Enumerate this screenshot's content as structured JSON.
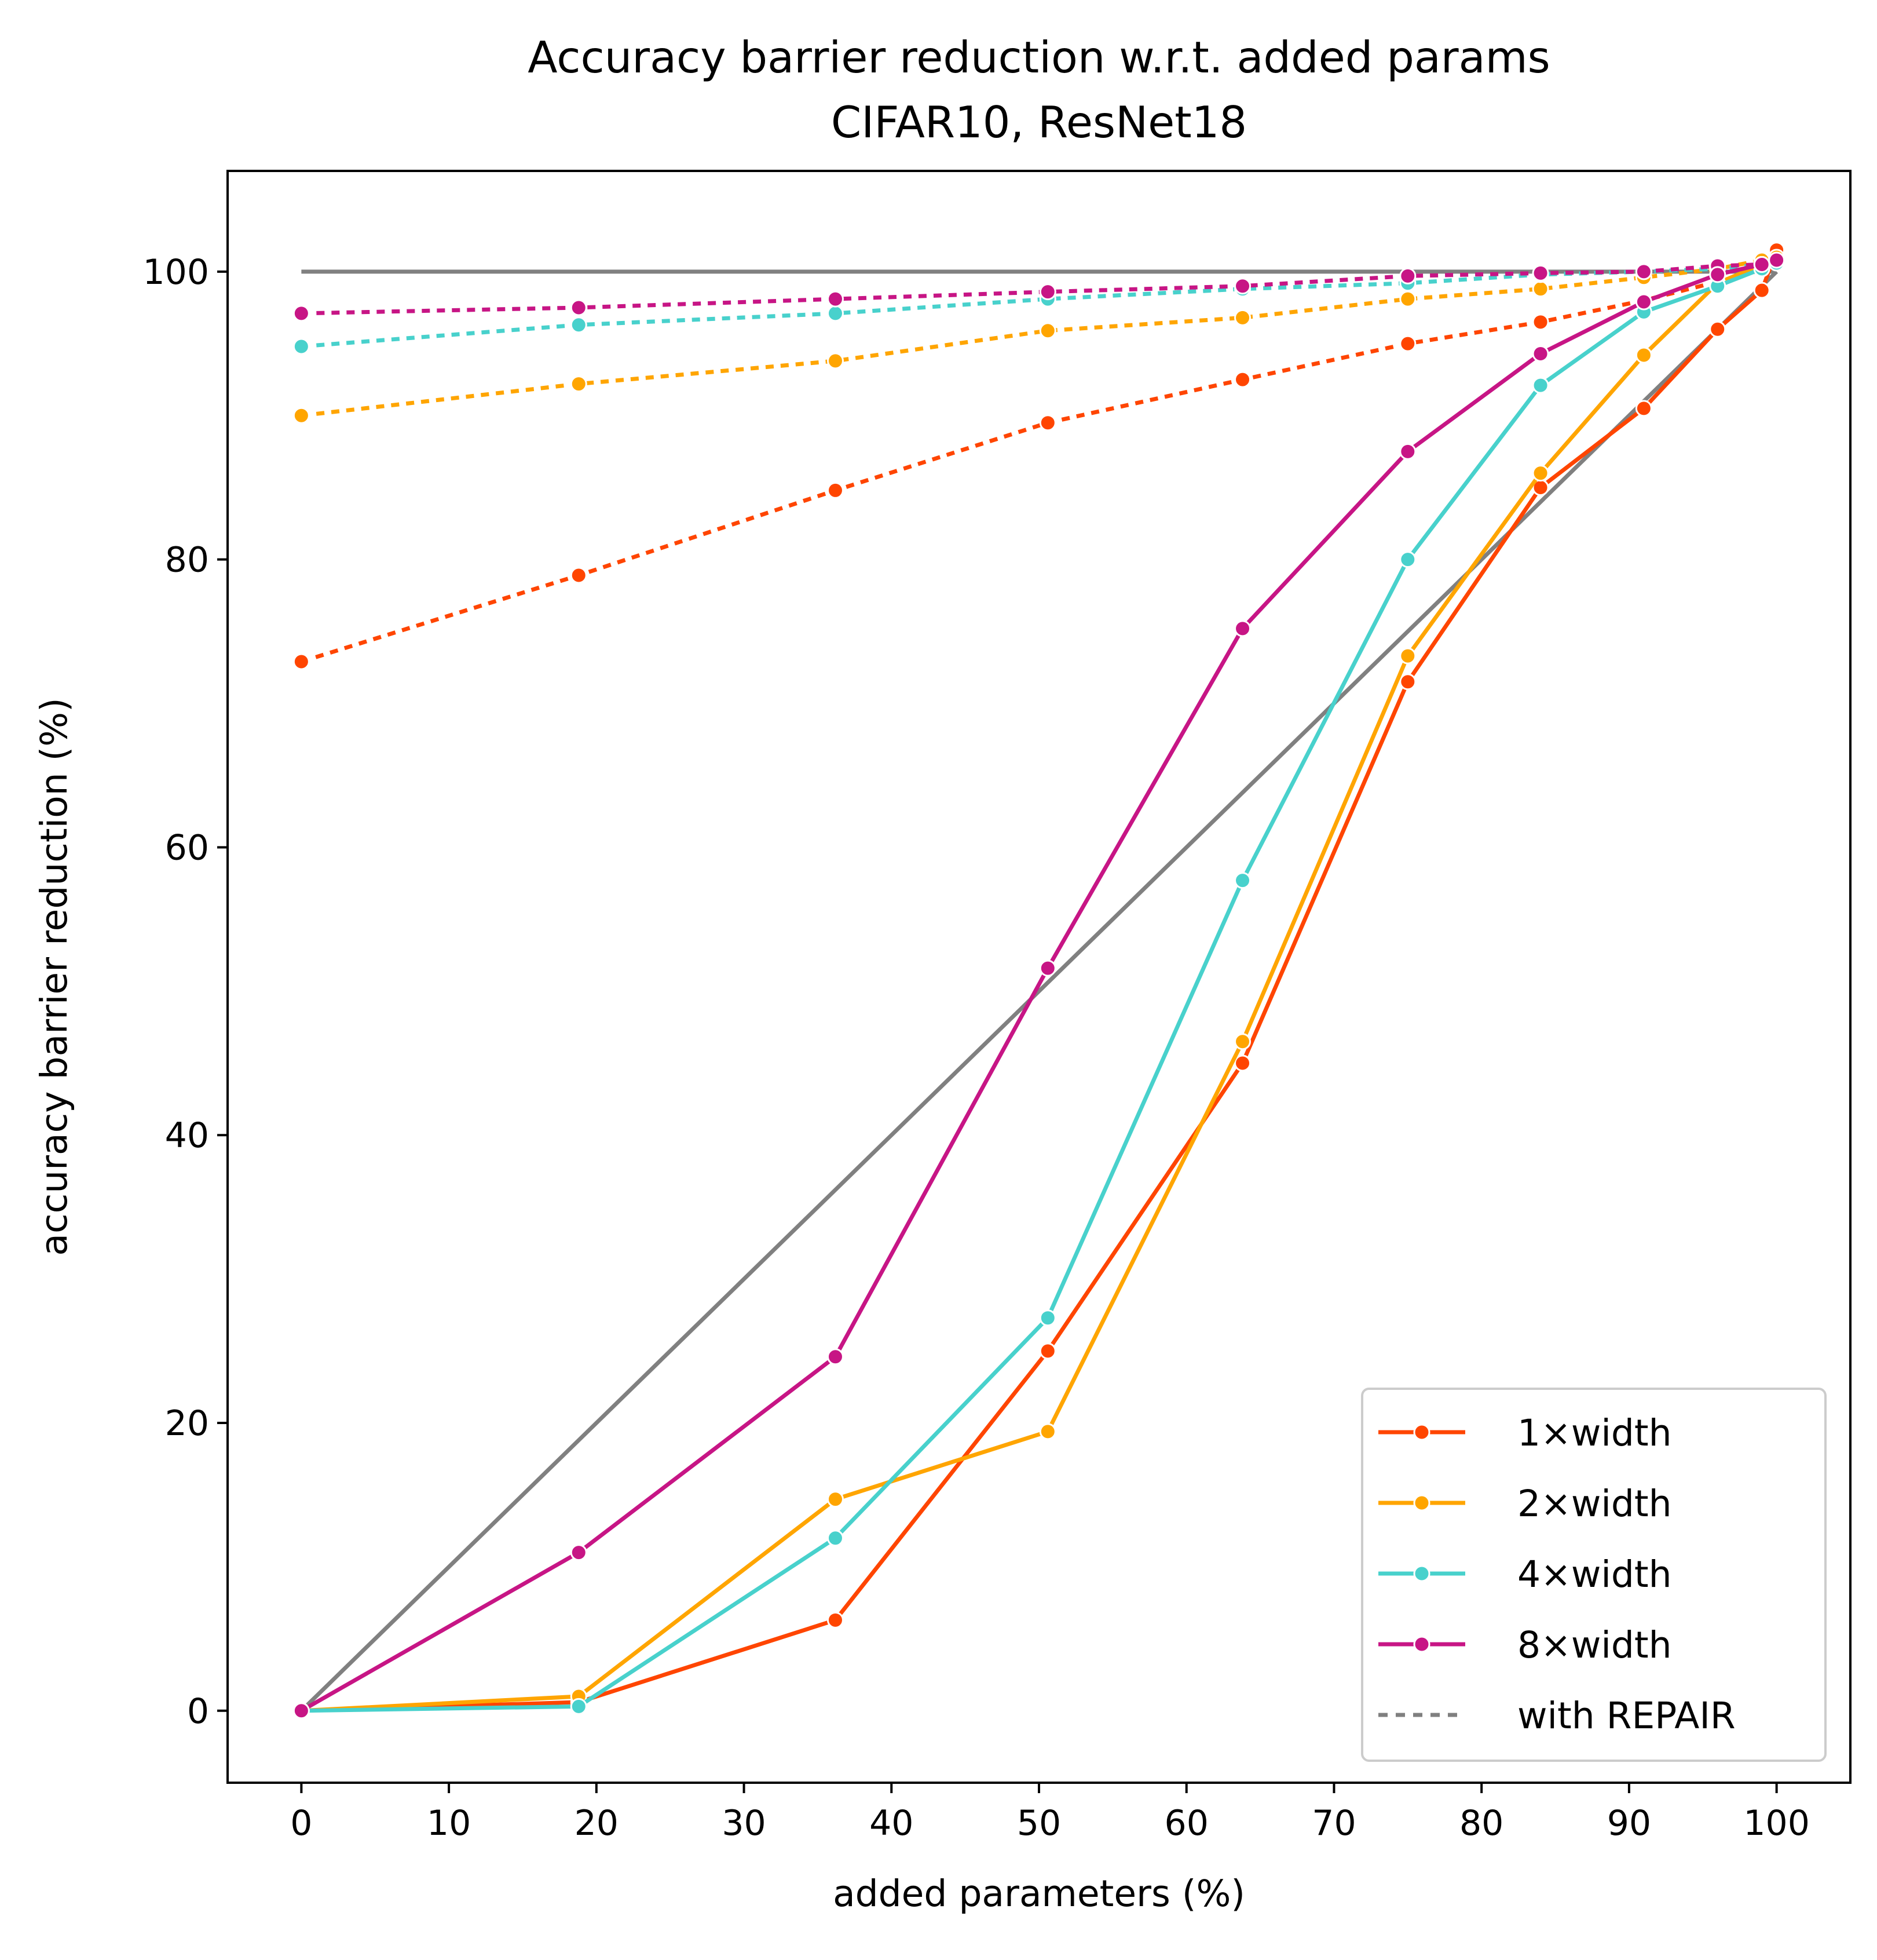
{
  "chart_data": {
    "type": "line",
    "title": "Accuracy barrier reduction w.r.t. added params",
    "subtitle": "CIFAR10, ResNet18",
    "xlabel": "added parameters (%)",
    "ylabel": "accuracy barrier reduction (%)",
    "xlim": [
      -5,
      105
    ],
    "ylim": [
      -5,
      107
    ],
    "xticks": [
      0,
      10,
      20,
      30,
      40,
      50,
      60,
      70,
      80,
      90,
      100
    ],
    "yticks": [
      0,
      20,
      40,
      60,
      80,
      100
    ],
    "grid": false,
    "legend_position": "lower-right",
    "legend": [
      {
        "label": "1×width",
        "color": "#ff4500",
        "style": "solid-marker"
      },
      {
        "label": "2×width",
        "color": "#ffa500",
        "style": "solid-marker"
      },
      {
        "label": "4×width",
        "color": "#48d1cc",
        "style": "solid-marker"
      },
      {
        "label": "8×width",
        "color": "#c71585",
        "style": "solid-marker"
      },
      {
        "label": "with REPAIR",
        "color": "#808080",
        "style": "dotted"
      }
    ],
    "reference_lines": [
      {
        "color": "#808080",
        "x": [
          0,
          100
        ],
        "y": [
          100,
          100
        ]
      },
      {
        "color": "#808080",
        "x": [
          0,
          100
        ],
        "y": [
          0,
          100
        ]
      }
    ],
    "series": [
      {
        "name": "1×width",
        "color": "#ff4500",
        "dash": "solid",
        "x": [
          0,
          18.8,
          36.2,
          50.6,
          63.8,
          75.0,
          84.0,
          91.0,
          96.0,
          99.0,
          100
        ],
        "y": [
          0,
          0.6,
          6.3,
          25.0,
          45.0,
          71.5,
          85.0,
          90.5,
          96.0,
          98.7,
          101.5
        ]
      },
      {
        "name": "2×width",
        "color": "#ffa500",
        "dash": "solid",
        "x": [
          0,
          18.8,
          36.2,
          50.6,
          63.8,
          75.0,
          84.0,
          91.0,
          96.0,
          99.0,
          100
        ],
        "y": [
          0,
          1.0,
          14.7,
          19.4,
          46.5,
          73.3,
          86.0,
          94.2,
          99.2,
          100.5,
          101.0
        ]
      },
      {
        "name": "4×width",
        "color": "#48d1cc",
        "dash": "solid",
        "x": [
          0,
          18.8,
          36.2,
          50.6,
          63.8,
          75.0,
          84.0,
          91.0,
          96.0,
          99.0,
          100
        ],
        "y": [
          0,
          0.3,
          12.0,
          27.3,
          57.7,
          80.0,
          92.1,
          97.2,
          99.0,
          100.2,
          100.6
        ]
      },
      {
        "name": "8×width",
        "color": "#c71585",
        "dash": "solid",
        "x": [
          0,
          18.8,
          36.2,
          50.6,
          63.8,
          75.0,
          84.0,
          91.0,
          96.0,
          99.0,
          100
        ],
        "y": [
          0,
          11.0,
          24.6,
          51.6,
          75.2,
          87.5,
          94.3,
          97.9,
          99.8,
          100.5,
          100.8
        ]
      },
      {
        "name": "1×width with REPAIR",
        "color": "#ff4500",
        "dash": "dotted",
        "x": [
          0,
          18.8,
          36.2,
          50.6,
          63.8,
          75.0,
          84.0,
          91.0,
          96.0,
          99.0,
          100
        ],
        "y": [
          72.9,
          78.9,
          84.8,
          89.5,
          92.5,
          95.0,
          96.5,
          98.0,
          99.3,
          100.1,
          100.8
        ]
      },
      {
        "name": "2×width with REPAIR",
        "color": "#ffa500",
        "dash": "dotted",
        "x": [
          0,
          18.8,
          36.2,
          50.6,
          63.8,
          75.0,
          84.0,
          91.0,
          96.0,
          99.0,
          100
        ],
        "y": [
          90.0,
          92.2,
          93.8,
          95.9,
          96.8,
          98.1,
          98.8,
          99.6,
          100.2,
          100.8,
          101.0
        ]
      },
      {
        "name": "4×width with REPAIR",
        "color": "#48d1cc",
        "dash": "dotted",
        "x": [
          0,
          18.8,
          36.2,
          50.6,
          63.8,
          75.0,
          84.0,
          91.0,
          96.0,
          99.0,
          100
        ],
        "y": [
          94.8,
          96.3,
          97.1,
          98.1,
          98.8,
          99.2,
          99.8,
          100.0,
          100.2,
          100.5,
          100.7
        ]
      },
      {
        "name": "8×width with REPAIR",
        "color": "#c71585",
        "dash": "dotted",
        "x": [
          0,
          18.8,
          36.2,
          50.6,
          63.8,
          75.0,
          84.0,
          91.0,
          96.0,
          99.0,
          100
        ],
        "y": [
          97.1,
          97.5,
          98.1,
          98.6,
          99.0,
          99.7,
          99.9,
          100.0,
          100.4,
          100.5,
          100.7
        ]
      }
    ]
  }
}
